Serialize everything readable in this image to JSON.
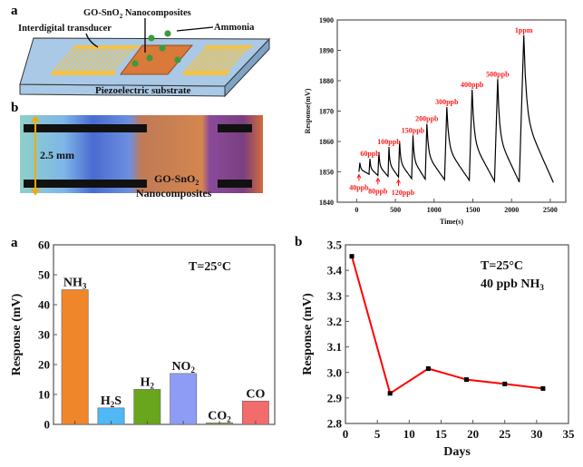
{
  "schematic": {
    "panel_label": "a",
    "labels": {
      "nanocomposite_main": "GO-SnO",
      "nanocomposite_sub": "2",
      "nanocomposite_tail": " Nanocomposites",
      "idt": "Interdigital transducer",
      "gas": "Ammonia",
      "substrate": "Piezoelectric substrate"
    },
    "colors": {
      "substrate": "#a9c9e6",
      "idt": "#f5c242",
      "film": "#d9793a",
      "gas": "#3c9a3c"
    }
  },
  "photo": {
    "panel_label": "b",
    "width_label": "2.5 mm",
    "film_label_main": "GO-SnO",
    "film_label_sub": "2",
    "film_label_line2": "Nanocomposites"
  },
  "chart_data": [
    {
      "type": "line",
      "xlabel": "Time(s)",
      "ylabel": "Response(mV)",
      "xlim": [
        -250,
        2700
      ],
      "ylim": [
        1840,
        1900
      ],
      "xticks": [
        0,
        500,
        1000,
        1500,
        2000,
        2500
      ],
      "yticks": [
        1840,
        1850,
        1860,
        1870,
        1880,
        1890,
        1900
      ],
      "line_color": "#000000",
      "annotation_color": "#ff1a1a",
      "exposures": [
        {
          "label": "40ppb",
          "t": 30,
          "baseline": 1850,
          "peak": 1853,
          "arrow": true
        },
        {
          "label": "60ppb",
          "t": 160,
          "baseline": 1849.2,
          "peak": 1854.3,
          "arrow": false
        },
        {
          "label": "80ppb",
          "t": 275,
          "baseline": 1848.8,
          "peak": 1856.5,
          "arrow": true
        },
        {
          "label": "100ppb",
          "t": 405,
          "baseline": 1848.5,
          "peak": 1858.2,
          "arrow": false
        },
        {
          "label": "120ppb",
          "t": 540,
          "baseline": 1848.3,
          "peak": 1860,
          "arrow": true
        },
        {
          "label": "150ppb",
          "t": 710,
          "baseline": 1847.8,
          "peak": 1862,
          "arrow": false
        },
        {
          "label": "200ppb",
          "t": 885,
          "baseline": 1847.6,
          "peak": 1865.8,
          "arrow": false
        },
        {
          "label": "300ppb",
          "t": 1135,
          "baseline": 1847.4,
          "peak": 1871.3,
          "arrow": false
        },
        {
          "label": "400ppb",
          "t": 1455,
          "baseline": 1847.2,
          "peak": 1877,
          "arrow": false
        },
        {
          "label": "500ppb",
          "t": 1780,
          "baseline": 1846.9,
          "peak": 1880.5,
          "arrow": false
        },
        {
          "label": "1ppm",
          "t": 2100,
          "baseline": 1846.6,
          "peak": 1895,
          "arrow": false
        }
      ],
      "end": {
        "t": 2540,
        "value": 1846.5
      }
    },
    {
      "type": "bar",
      "panel_label": "a",
      "ylabel": "Response (mV)",
      "ylim": [
        0,
        60
      ],
      "yticks": [
        0,
        10,
        20,
        30,
        40,
        50,
        60
      ],
      "annotation": "T=25°C",
      "categories": [
        {
          "main": "NH",
          "sub": "3",
          "tail": ""
        },
        {
          "main": "H",
          "sub": "2",
          "tail": "S"
        },
        {
          "main": "H",
          "sub": "2",
          "tail": ""
        },
        {
          "main": "NO",
          "sub": "2",
          "tail": ""
        },
        {
          "main": "CO",
          "sub": "2",
          "tail": ""
        },
        {
          "main": "CO",
          "sub": "",
          "tail": ""
        }
      ],
      "values": [
        45,
        5.5,
        11.7,
        17,
        0.5,
        7.8
      ],
      "colors": [
        "#f0862a",
        "#4fb8f5",
        "#6aa51e",
        "#8f9cf5",
        "#9a9a55",
        "#f36b6b"
      ]
    },
    {
      "type": "line",
      "panel_label": "b",
      "xlabel": "Days",
      "ylabel": "Response (mV)",
      "xlim": [
        0,
        35
      ],
      "ylim": [
        2.8,
        3.5
      ],
      "xticks": [
        0,
        5,
        10,
        15,
        20,
        25,
        30,
        35
      ],
      "yticks": [
        2.8,
        2.9,
        3.0,
        3.1,
        3.2,
        3.3,
        3.4,
        3.5
      ],
      "annotation_line1": "T=25°C",
      "annotation_line2_main": "40 ppb NH",
      "annotation_line2_sub": "3",
      "line_color": "#ff0000",
      "marker_color": "#000000",
      "x": [
        1,
        7,
        13,
        19,
        25,
        31
      ],
      "y": [
        3.455,
        2.918,
        3.015,
        2.972,
        2.955,
        2.937
      ]
    }
  ]
}
